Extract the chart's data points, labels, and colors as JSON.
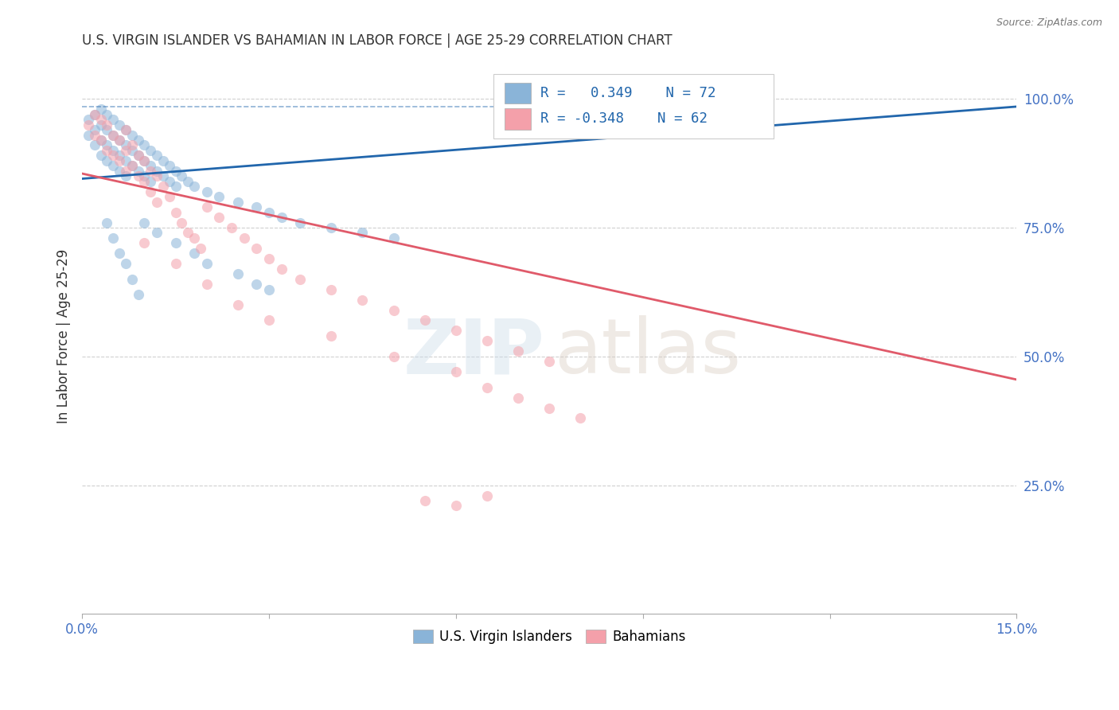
{
  "title": "U.S. VIRGIN ISLANDER VS BAHAMIAN IN LABOR FORCE | AGE 25-29 CORRELATION CHART",
  "source": "Source: ZipAtlas.com",
  "ylabel": "In Labor Force | Age 25-29",
  "xlim": [
    0.0,
    0.15
  ],
  "ylim": [
    0.0,
    1.08
  ],
  "x_ticks": [
    0.0,
    0.03,
    0.06,
    0.09,
    0.12,
    0.15
  ],
  "x_tick_labels": [
    "0.0%",
    "",
    "",
    "",
    "",
    "15.0%"
  ],
  "y_ticks_right": [
    0.25,
    0.5,
    0.75,
    1.0
  ],
  "y_tick_labels_right": [
    "25.0%",
    "50.0%",
    "75.0%",
    "100.0%"
  ],
  "blue_color": "#8ab4d8",
  "pink_color": "#f4a0aa",
  "line_blue_color": "#2166ac",
  "line_pink_color": "#e05a6a",
  "grid_color": "#d0d0d0",
  "background_color": "#ffffff",
  "blue_line_x0": 0.0,
  "blue_line_x1": 0.15,
  "blue_line_y0": 0.845,
  "blue_line_y1": 0.985,
  "pink_line_x0": 0.0,
  "pink_line_x1": 0.15,
  "pink_line_y0": 0.855,
  "pink_line_y1": 0.455,
  "blue_scatter_x": [
    0.001,
    0.001,
    0.002,
    0.002,
    0.002,
    0.003,
    0.003,
    0.003,
    0.003,
    0.004,
    0.004,
    0.004,
    0.004,
    0.005,
    0.005,
    0.005,
    0.005,
    0.006,
    0.006,
    0.006,
    0.006,
    0.007,
    0.007,
    0.007,
    0.007,
    0.008,
    0.008,
    0.008,
    0.009,
    0.009,
    0.009,
    0.01,
    0.01,
    0.01,
    0.011,
    0.011,
    0.011,
    0.012,
    0.012,
    0.013,
    0.013,
    0.014,
    0.014,
    0.015,
    0.015,
    0.016,
    0.017,
    0.018,
    0.02,
    0.022,
    0.025,
    0.028,
    0.03,
    0.032,
    0.035,
    0.04,
    0.045,
    0.05,
    0.01,
    0.012,
    0.015,
    0.018,
    0.02,
    0.025,
    0.028,
    0.03,
    0.004,
    0.005,
    0.006,
    0.007,
    0.008,
    0.009
  ],
  "blue_scatter_y": [
    0.96,
    0.93,
    0.97,
    0.94,
    0.91,
    0.98,
    0.95,
    0.92,
    0.89,
    0.97,
    0.94,
    0.91,
    0.88,
    0.96,
    0.93,
    0.9,
    0.87,
    0.95,
    0.92,
    0.89,
    0.86,
    0.94,
    0.91,
    0.88,
    0.85,
    0.93,
    0.9,
    0.87,
    0.92,
    0.89,
    0.86,
    0.91,
    0.88,
    0.85,
    0.9,
    0.87,
    0.84,
    0.89,
    0.86,
    0.88,
    0.85,
    0.87,
    0.84,
    0.86,
    0.83,
    0.85,
    0.84,
    0.83,
    0.82,
    0.81,
    0.8,
    0.79,
    0.78,
    0.77,
    0.76,
    0.75,
    0.74,
    0.73,
    0.76,
    0.74,
    0.72,
    0.7,
    0.68,
    0.66,
    0.64,
    0.63,
    0.76,
    0.73,
    0.7,
    0.68,
    0.65,
    0.62
  ],
  "pink_scatter_x": [
    0.001,
    0.002,
    0.002,
    0.003,
    0.003,
    0.004,
    0.004,
    0.005,
    0.005,
    0.006,
    0.006,
    0.007,
    0.007,
    0.007,
    0.008,
    0.008,
    0.009,
    0.009,
    0.01,
    0.01,
    0.011,
    0.011,
    0.012,
    0.012,
    0.013,
    0.014,
    0.015,
    0.016,
    0.017,
    0.018,
    0.019,
    0.02,
    0.022,
    0.024,
    0.026,
    0.028,
    0.03,
    0.032,
    0.035,
    0.04,
    0.045,
    0.05,
    0.055,
    0.06,
    0.065,
    0.07,
    0.075,
    0.01,
    0.015,
    0.02,
    0.025,
    0.03,
    0.04,
    0.05,
    0.06,
    0.065,
    0.07,
    0.075,
    0.08,
    0.055,
    0.06,
    0.065
  ],
  "pink_scatter_y": [
    0.95,
    0.97,
    0.93,
    0.96,
    0.92,
    0.95,
    0.9,
    0.93,
    0.89,
    0.92,
    0.88,
    0.94,
    0.9,
    0.86,
    0.91,
    0.87,
    0.89,
    0.85,
    0.88,
    0.84,
    0.86,
    0.82,
    0.85,
    0.8,
    0.83,
    0.81,
    0.78,
    0.76,
    0.74,
    0.73,
    0.71,
    0.79,
    0.77,
    0.75,
    0.73,
    0.71,
    0.69,
    0.67,
    0.65,
    0.63,
    0.61,
    0.59,
    0.57,
    0.55,
    0.53,
    0.51,
    0.49,
    0.72,
    0.68,
    0.64,
    0.6,
    0.57,
    0.54,
    0.5,
    0.47,
    0.44,
    0.42,
    0.4,
    0.38,
    0.22,
    0.21,
    0.23
  ],
  "legend_label_blue": "U.S. Virgin Islanders",
  "legend_label_pink": "Bahamians"
}
